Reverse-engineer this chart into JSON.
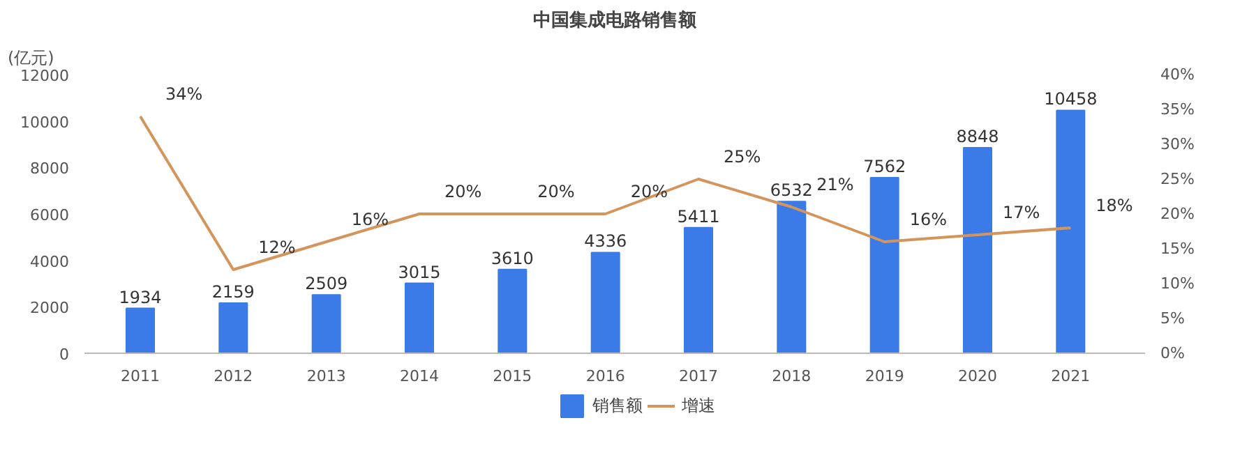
{
  "chart_data": {
    "type": "bar",
    "title": "中国集成电路销售额",
    "ylabel": "(亿元)",
    "categories": [
      "2011",
      "2012",
      "2013",
      "2014",
      "2015",
      "2016",
      "2017",
      "2018",
      "2019",
      "2020",
      "2021"
    ],
    "series": [
      {
        "name": "销售额",
        "color": "#3b7be8",
        "values": [
          1934,
          2159,
          2509,
          3015,
          3610,
          4336,
          5411,
          6532,
          7562,
          8848,
          10458
        ],
        "value_labels": [
          "1934",
          "2159",
          "2509",
          "3015",
          "3610",
          "4336",
          "5411",
          "6532",
          "7562",
          "8848",
          "10458"
        ]
      },
      {
        "name": "增速",
        "type": "line",
        "axis": "y2",
        "color": "#d4955c",
        "values": [
          34,
          12,
          16,
          20,
          20,
          20,
          25,
          21,
          16,
          17,
          18
        ],
        "value_labels": [
          "34%",
          "12%",
          "16%",
          "20%",
          "20%",
          "20%",
          "25%",
          "21%",
          "16%",
          "17%",
          "18%"
        ]
      }
    ],
    "ylim": [
      0,
      12000
    ],
    "yticks": [
      0,
      2000,
      4000,
      6000,
      8000,
      10000,
      12000
    ],
    "y2lim": [
      0,
      40
    ],
    "y2ticks": [
      {
        "value": 0,
        "label": "0%"
      },
      {
        "value": 5,
        "label": "5%"
      },
      {
        "value": 10,
        "label": "10%"
      },
      {
        "value": 15,
        "label": "15%"
      },
      {
        "value": 20,
        "label": "20%"
      },
      {
        "value": 25,
        "label": "25%"
      },
      {
        "value": 30,
        "label": "30%"
      },
      {
        "value": 35,
        "label": "35%"
      },
      {
        "value": 40,
        "label": "40%"
      }
    ],
    "grid": false,
    "legend": "bottom",
    "marker": "none",
    "line_style": "solid"
  }
}
